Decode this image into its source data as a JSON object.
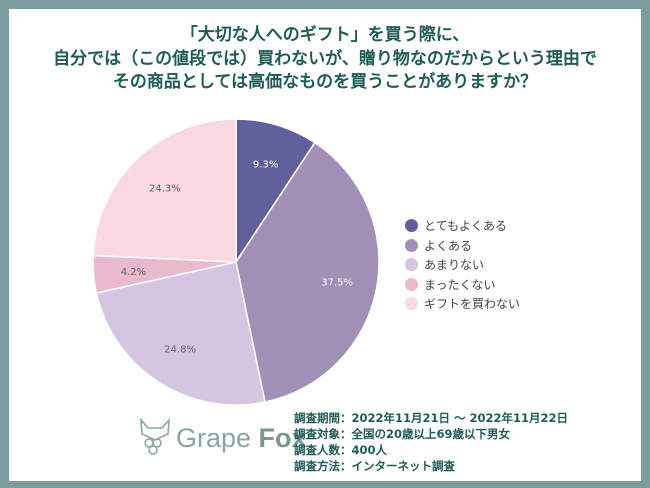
{
  "title_lines": [
    "「大切な人へのギフト」を買う際に、",
    "自分では（この値段では）買わないが、贈り物なのだからという理由で",
    "その商品としては高価なものを買うことがありますか？"
  ],
  "chart_data": {
    "type": "pie",
    "title": "「大切な人へのギフト」を買う際に、自分では（この値段では）買わないが、贈り物なのだからという理由でその商品としては高価なものを買うことがありますか？",
    "start": "top",
    "direction": "clockwise",
    "legend_position": "right",
    "slices": [
      {
        "name": "とてもよくある",
        "value": 9.3,
        "label": "9.3%",
        "color": "#60619c",
        "label_color": "#ffffff"
      },
      {
        "name": "よくある",
        "value": 37.5,
        "label": "37.5%",
        "color": "#a18fb6",
        "label_color": "#ffffff"
      },
      {
        "name": "あまりない",
        "value": 24.8,
        "label": "24.8%",
        "color": "#d5c5e1",
        "label_color": "#666666"
      },
      {
        "name": "まったくない",
        "value": 4.2,
        "label": "4.2%",
        "color": "#e9b9cd",
        "label_color": "#666666"
      },
      {
        "name": "ギフトを買わない",
        "value": 24.3,
        "label": "24.3%",
        "color": "#f9d8df",
        "label_color": "#666666"
      }
    ]
  },
  "logo": {
    "text_light": "Grape ",
    "text_bold": "Fox"
  },
  "survey_info": [
    "調査期間：2022年11月21日 ～ 2022年11月22日",
    "調査対象：全国の20歳以上69歳以下男女",
    "調査人数：400人",
    "調査方法：インターネット調査"
  ],
  "colors": {
    "frame": "#7b9d9d",
    "title": "#1e5b57"
  }
}
